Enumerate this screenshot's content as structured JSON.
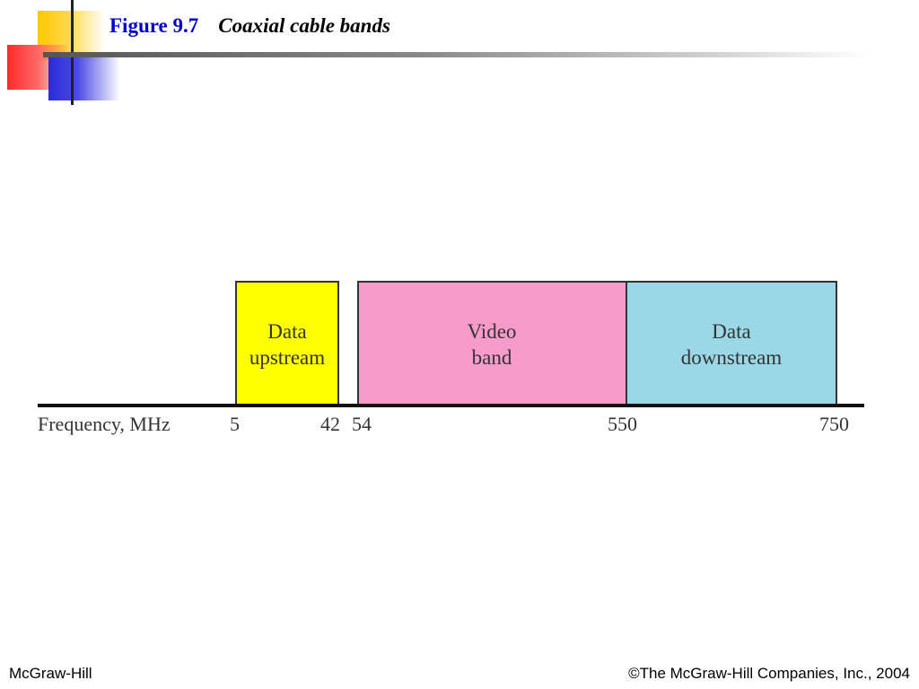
{
  "header": {
    "figure_label": "Figure 9.7",
    "caption": "Coaxial cable bands"
  },
  "diagram": {
    "axis_label": "Frequency, MHz",
    "bands": [
      {
        "lines": [
          "Data",
          "upstream"
        ],
        "start": 5,
        "end": 42,
        "color": "#ffff00"
      },
      {
        "lines": [
          "Video",
          "band"
        ],
        "start": 54,
        "end": 550,
        "color": "#f79bcb"
      },
      {
        "lines": [
          "Data",
          "downstream"
        ],
        "start": 550,
        "end": 750,
        "color": "#9ad8e8"
      }
    ],
    "ticks": [
      "5",
      "42",
      "54",
      "550",
      "750"
    ]
  },
  "footer": {
    "left": "McGraw-Hill",
    "right": "©The McGraw-Hill Companies, Inc., 2004"
  }
}
